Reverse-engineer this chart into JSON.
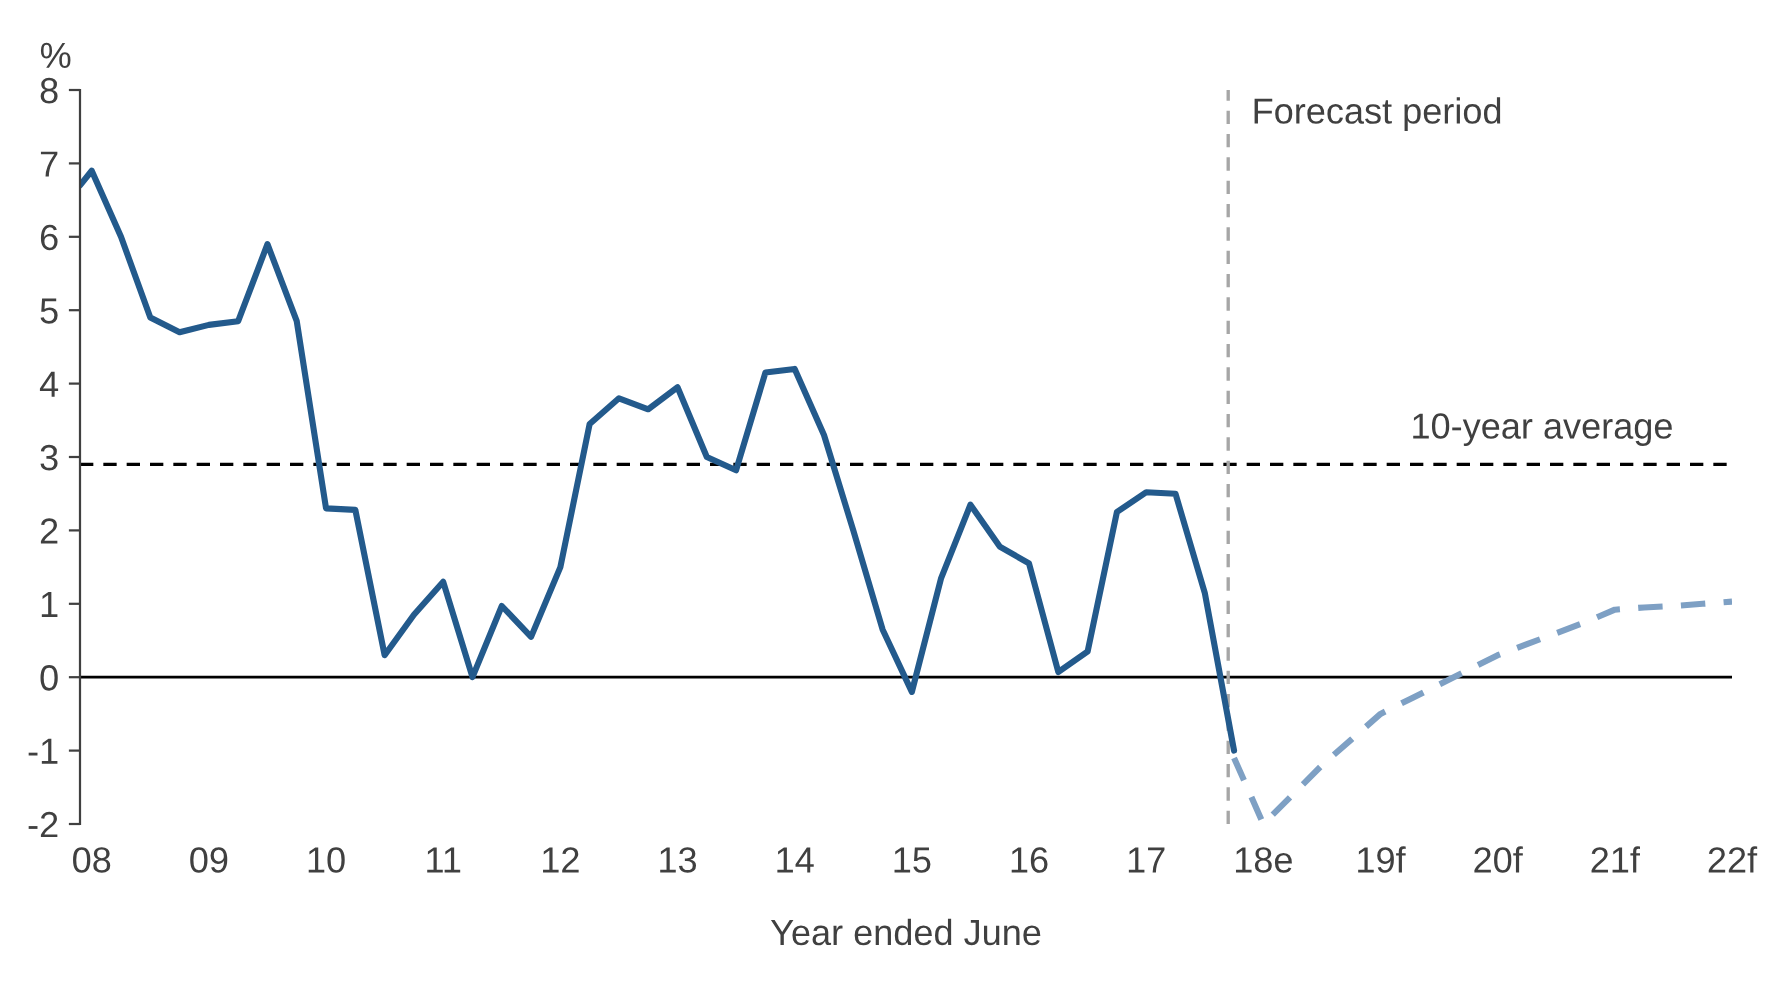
{
  "chart_data": {
    "type": "line",
    "ylabel": "%",
    "xlabel": "Year ended June",
    "xlim": [
      7.9,
      22.0
    ],
    "ylim": [
      -2,
      8
    ],
    "xticks": [
      {
        "value": 8,
        "label": "08"
      },
      {
        "value": 9,
        "label": "09"
      },
      10,
      11,
      12,
      13,
      14,
      15,
      16,
      17,
      {
        "value": 18,
        "label": "18e"
      },
      {
        "value": 19,
        "label": "19f"
      },
      {
        "value": 20,
        "label": "20f"
      },
      {
        "value": 21,
        "label": "21f"
      },
      {
        "value": 22,
        "label": "22f"
      }
    ],
    "yticks": [
      -2,
      -1,
      0,
      1,
      2,
      3,
      4,
      5,
      6,
      7,
      8
    ],
    "grid": false,
    "legend": false,
    "tick_labels": true,
    "series": [
      {
        "color": "#235a8c",
        "line_style": "solid",
        "x": [
          7.9,
          8,
          8.25,
          8.5,
          8.75,
          9,
          9.25,
          9.5,
          9.75,
          10,
          10.25,
          10.5,
          10.75,
          11,
          11.25,
          11.5,
          11.75,
          12,
          12.25,
          12.5,
          12.75,
          13,
          13.25,
          13.5,
          13.75,
          14,
          14.25,
          14.5,
          14.75,
          15,
          15.25,
          15.5,
          15.75,
          16,
          16.25,
          16.5,
          16.75,
          17,
          17.25,
          17.5,
          17.75
        ],
        "values": [
          6.7,
          6.9,
          6.0,
          4.9,
          4.7,
          4.8,
          4.85,
          5.9,
          4.85,
          2.3,
          2.28,
          0.3,
          0.85,
          1.3,
          0.0,
          0.97,
          0.55,
          1.5,
          3.45,
          3.8,
          3.65,
          3.95,
          3.0,
          2.82,
          4.15,
          4.2,
          3.3,
          2.0,
          0.65,
          -0.2,
          1.35,
          2.35,
          1.78,
          1.55,
          0.07,
          0.35,
          2.25,
          2.52,
          2.5,
          1.15,
          -1.0
        ]
      },
      {
        "color": "#7ea0c4",
        "line_style": "dashed",
        "x": [
          17.75,
          18,
          18.25,
          18.5,
          18.75,
          19,
          19.25,
          19.5,
          19.75,
          20,
          20.25,
          20.5,
          20.75,
          21,
          21.25,
          21.5,
          21.75,
          22
        ],
        "values": [
          -1.1,
          -2.0,
          -1.6,
          -1.2,
          -0.85,
          -0.5,
          -0.3,
          -0.1,
          0.1,
          0.3,
          0.45,
          0.6,
          0.75,
          0.92,
          0.95,
          0.97,
          1.0,
          1.03
        ]
      }
    ],
    "ref_lines": [
      {
        "axis": "y",
        "value": 0,
        "color": "#000000",
        "line_style": "solid"
      },
      {
        "axis": "y",
        "value": 2.9,
        "label": "10-year average",
        "color": "#000000",
        "line_style": "dashed"
      },
      {
        "axis": "x",
        "value": 17.7,
        "label": "Forecast period",
        "color": "#a6a6a6",
        "line_style": "dashed"
      }
    ]
  }
}
